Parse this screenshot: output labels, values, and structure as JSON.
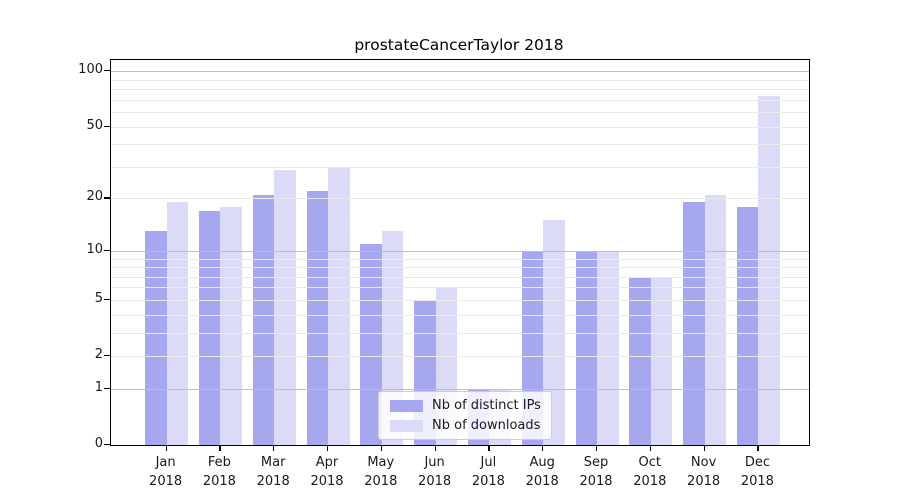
{
  "page": {
    "background": "#ffffff"
  },
  "chart_data": {
    "type": "bar",
    "title": "prostateCancerTaylor 2018",
    "categories": [
      "Jan",
      "Feb",
      "Mar",
      "Apr",
      "May",
      "Jun",
      "Jul",
      "Aug",
      "Sep",
      "Oct",
      "Nov",
      "Dec"
    ],
    "year_label": "2018",
    "series": [
      {
        "name": "Nb of distinct IPs",
        "color": "#a7a7f0",
        "values": [
          13,
          17,
          21,
          22,
          11,
          5,
          1,
          10,
          10,
          7,
          19,
          18
        ]
      },
      {
        "name": "Nb of downloads",
        "color": "#dbdbf8",
        "values": [
          19,
          18,
          29,
          30,
          13,
          6,
          1,
          15,
          10,
          7,
          21,
          73
        ]
      }
    ],
    "yscale": "log1p",
    "ylim": [
      0,
      115
    ],
    "yticks": [
      0,
      1,
      2,
      5,
      10,
      20,
      50,
      100
    ],
    "grid_minor": [
      2,
      3,
      4,
      5,
      6,
      7,
      8,
      9,
      20,
      30,
      40,
      50,
      60,
      70,
      80,
      90
    ],
    "grid_major": [
      1,
      10,
      100
    ],
    "grid_minor_color": "#eaeaea",
    "grid_major_color": "#bfbfbf",
    "legend_position": "bottom-center",
    "axis_color": "#000000",
    "grid_on": true
  }
}
